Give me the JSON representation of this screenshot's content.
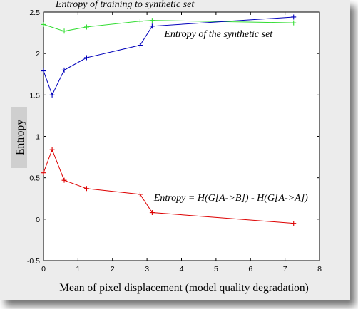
{
  "chart_data": {
    "type": "line",
    "xlabel": "Mean of pixel displacement (model quality degradation)",
    "ylabel": "Entropy",
    "xlim": [
      0,
      8
    ],
    "ylim": [
      -0.5,
      2.5
    ],
    "x_ticks": [
      "0",
      "1",
      "2",
      "3",
      "4",
      "5",
      "6",
      "7",
      "8"
    ],
    "y_ticks": [
      "-0.5",
      "0",
      "0.5",
      "1",
      "1.5",
      "2",
      "2.5"
    ],
    "grid": false,
    "series": [
      {
        "color": "#33dd33",
        "marker": "+",
        "x": [
          0,
          0.6,
          1.25,
          2.8,
          3.15,
          7.25
        ],
        "y": [
          2.35,
          2.27,
          2.32,
          2.39,
          2.4,
          2.37
        ]
      },
      {
        "color": "#0000bb",
        "marker": "+",
        "x": [
          0,
          0.25,
          0.6,
          1.25,
          2.8,
          3.15,
          7.25
        ],
        "y": [
          1.79,
          1.5,
          1.8,
          1.95,
          2.1,
          2.33,
          2.44
        ]
      },
      {
        "color": "#dd0000",
        "marker": "+",
        "x": [
          0,
          0.25,
          0.6,
          1.25,
          2.8,
          3.15,
          7.25
        ],
        "y": [
          0.56,
          0.84,
          0.47,
          0.37,
          0.3,
          0.08,
          -0.05
        ]
      }
    ],
    "annotations": [
      {
        "text": "Entropy of training to synthetic set",
        "x": 0.35,
        "y": 2.56
      },
      {
        "text": "Entropy of the synthetic set",
        "x": 3.5,
        "y": 2.2
      },
      {
        "text": "Entropy = H(G[A->B]) - H(G[A->A])",
        "x": 3.2,
        "y": 0.22
      }
    ]
  }
}
